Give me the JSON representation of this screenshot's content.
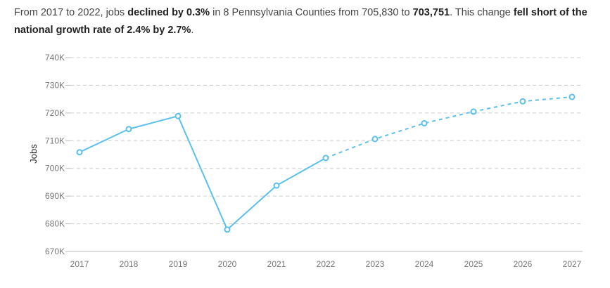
{
  "summary": {
    "p1": "From 2017 to 2022, jobs ",
    "b1": "declined by 0.3%",
    "p2": " in 8 Pennsylvania Counties from 705,830 to ",
    "b2": "703,751",
    "p3": ". This change ",
    "b3": "fell short of the national growth rate of 2.4% by 2.7%",
    "p4": "."
  },
  "colors": {
    "line": "#5bc0eb",
    "grid": "#cccccc",
    "axis": "#bbbbbb"
  },
  "chart_data": {
    "type": "line",
    "ylabel": "Jobs",
    "ylim": [
      670000,
      740000
    ],
    "yticks": [
      670000,
      680000,
      690000,
      700000,
      710000,
      720000,
      730000,
      740000
    ],
    "ytick_labels": [
      "670K",
      "680K",
      "690K",
      "700K",
      "710K",
      "720K",
      "730K",
      "740K"
    ],
    "x": [
      "2017",
      "2018",
      "2019",
      "2020",
      "2021",
      "2022",
      "2023",
      "2024",
      "2025",
      "2026",
      "2027"
    ],
    "series": [
      {
        "style": "solid",
        "x": [
          "2017",
          "2018",
          "2019",
          "2020",
          "2021",
          "2022"
        ],
        "values": [
          705830,
          714200,
          718900,
          677900,
          693800,
          703751
        ]
      },
      {
        "style": "dashed",
        "x": [
          "2022",
          "2023",
          "2024",
          "2025",
          "2026",
          "2027"
        ],
        "values": [
          703751,
          710600,
          716300,
          720500,
          724200,
          725800
        ]
      }
    ],
    "grid": true
  }
}
